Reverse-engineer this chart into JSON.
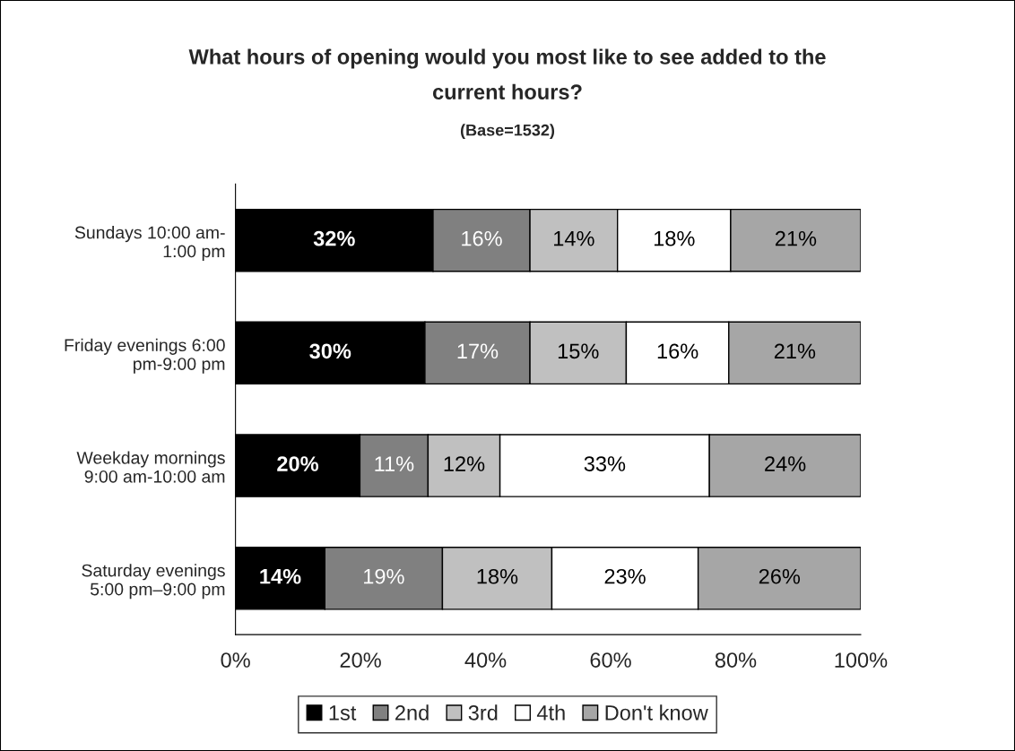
{
  "chart_data": {
    "type": "bar",
    "orientation": "horizontal",
    "stacked": true,
    "title": "What hours of opening would you most like to see added to the\ncurrent hours?",
    "subtitle": "(Base=1532)",
    "categories": [
      "Sundays 10:00 am-\n1:00 pm",
      "Friday evenings 6:00\npm-9:00 pm",
      "Weekday mornings\n9:00 am-10:00 am",
      "Saturday evenings\n5:00 pm–9:00 pm"
    ],
    "series": [
      {
        "name": "1st",
        "color": "#000000",
        "values": [
          31.6,
          30.3,
          19.9,
          14.3
        ],
        "value_labels": [
          "32%",
          "30%",
          "20%",
          "14%"
        ]
      },
      {
        "name": "2nd",
        "color": "#808080",
        "values": [
          15.5,
          16.8,
          10.9,
          18.8
        ],
        "value_labels": [
          "16%",
          "17%",
          "11%",
          "19%"
        ]
      },
      {
        "name": "3rd",
        "color": "#c0c0c0",
        "values": [
          14.0,
          15.4,
          11.5,
          17.5
        ],
        "value_labels": [
          "14%",
          "15%",
          "12%",
          "18%"
        ]
      },
      {
        "name": "4th",
        "color": "#ffffff",
        "values": [
          18.1,
          16.4,
          33.5,
          23.4
        ],
        "value_labels": [
          "18%",
          "16%",
          "33%",
          "23%"
        ]
      },
      {
        "name": "Don't know",
        "color": "#a6a6a6",
        "values": [
          20.8,
          21.1,
          24.2,
          26.0
        ],
        "value_labels": [
          "21%",
          "21%",
          "24%",
          "26%"
        ]
      }
    ],
    "xlim": [
      0,
      100
    ],
    "xticks": [
      {
        "value": 0,
        "label": "0%"
      },
      {
        "value": 20,
        "label": "20%"
      },
      {
        "value": 40,
        "label": "40%"
      },
      {
        "value": 60,
        "label": "60%"
      },
      {
        "value": 80,
        "label": "80%"
      },
      {
        "value": 100,
        "label": "100%"
      }
    ],
    "grid": false,
    "legend": "bottom"
  }
}
